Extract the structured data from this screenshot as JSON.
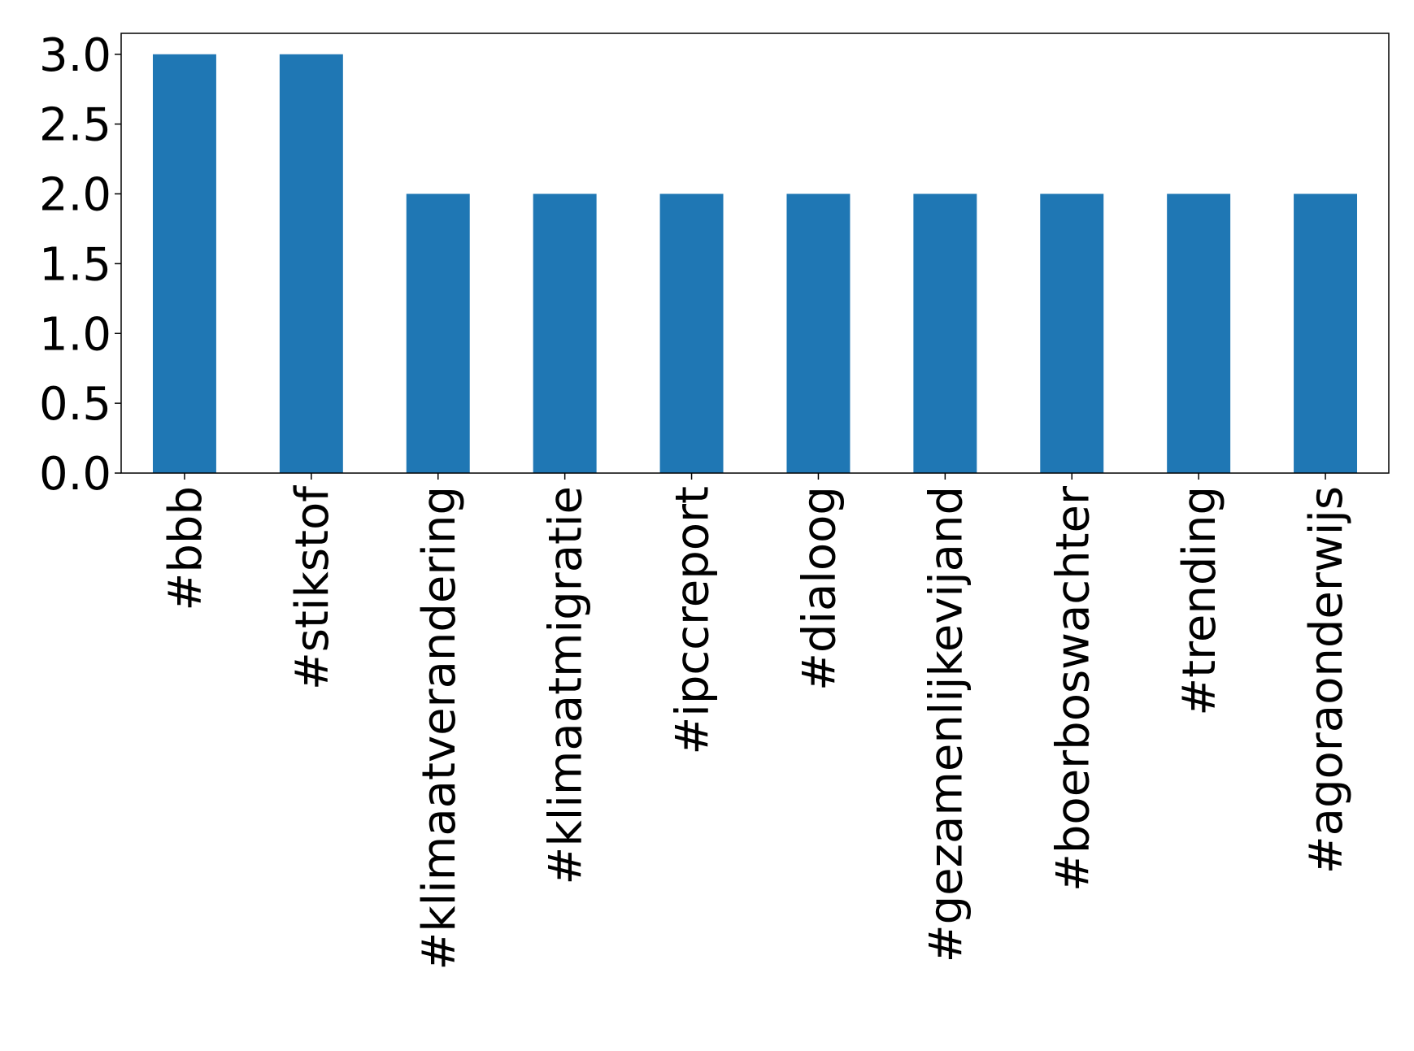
{
  "chart_data": {
    "type": "bar",
    "categories": [
      "#bbb",
      "#stikstof",
      "#klimaatverandering",
      "#klimaatmigratie",
      "#ipccreport",
      "#dialoog",
      "#gezamenlijkevijand",
      "#boerboswachter",
      "#trending",
      "#agoraonderwijs"
    ],
    "values": [
      3,
      3,
      2,
      2,
      2,
      2,
      2,
      2,
      2,
      2
    ],
    "color": "#1f77b4",
    "ylim": [
      0,
      3.15
    ],
    "yticks": [
      {
        "value": 0,
        "label": "0.0"
      },
      0.5,
      {
        "value": 1,
        "label": "1.0"
      },
      1.5,
      {
        "value": 2,
        "label": "2.0"
      },
      2.5,
      {
        "value": 3,
        "label": "3.0"
      }
    ],
    "grid": false
  }
}
